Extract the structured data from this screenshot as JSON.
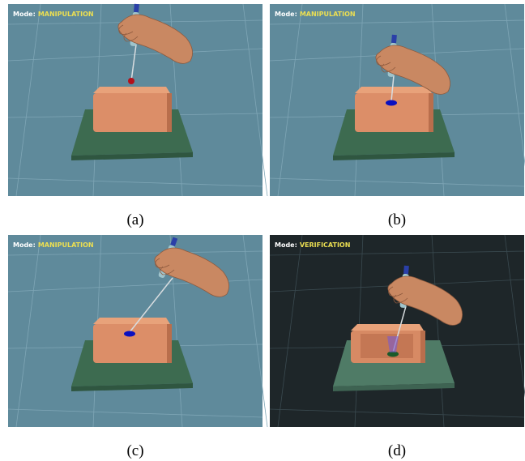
{
  "panels": [
    {
      "mode_label": "Mode:",
      "mode": "MANIPULATION",
      "caption": "(a)"
    },
    {
      "mode_label": "Mode:",
      "mode": "MANIPULATION",
      "caption": "(b)"
    },
    {
      "mode_label": "Mode:",
      "mode": "MANIPULATION",
      "caption": "(c)"
    },
    {
      "mode_label": "Mode:",
      "mode": "VERIFICATION",
      "caption": "(d)"
    }
  ]
}
